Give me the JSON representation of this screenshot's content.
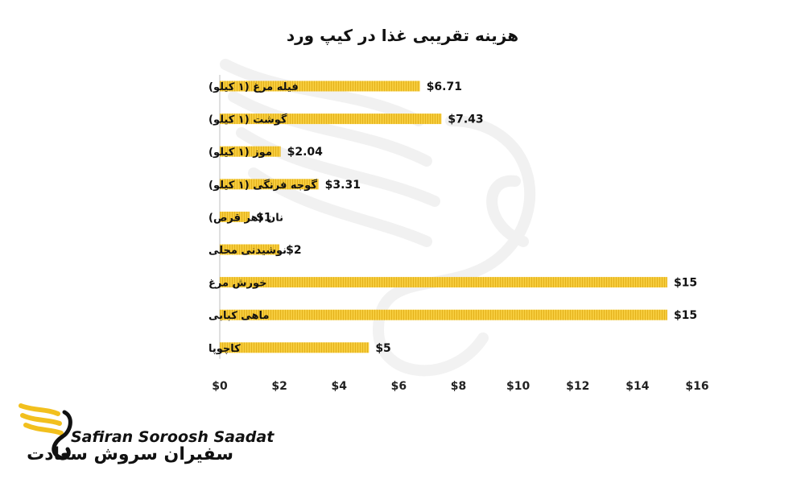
{
  "chart_data": {
    "type": "bar",
    "orientation": "horizontal",
    "title": "هزینه تقریبی غذا در کیپ ورد",
    "categories": [
      "فیله مرغ (۱ کیلو)",
      "گوشت (۱ کیلو)",
      "موز (۱ کیلو)",
      "گوجه فرنگی (۱ کیلو)",
      "نان (هر قرص)",
      "نوشیدنی محلی",
      "خورش مرغ",
      "ماهی کبابی",
      "کاچوپا"
    ],
    "values": [
      6.71,
      7.43,
      2.04,
      3.31,
      1,
      2,
      15,
      15,
      5
    ],
    "data_labels": [
      "$6.71",
      "$7.43",
      "$2.04",
      "$3.31",
      "$1",
      "$2",
      "$15",
      "$15",
      "$5"
    ],
    "xlim": [
      0,
      16
    ],
    "x_ticks": [
      0,
      2,
      4,
      6,
      8,
      10,
      12,
      14,
      16
    ],
    "x_tick_labels": [
      "$0",
      "$2",
      "$4",
      "$6",
      "$8",
      "$10",
      "$12",
      "$14",
      "$16"
    ],
    "grid": false,
    "legend": "none",
    "bar_color": "#f6cc3d",
    "bar_stripe_color": "#e4b21c"
  },
  "logo": {
    "name_en": "Safiran Soroosh Saadat",
    "name_fa": "سفیران سروش سعادت",
    "accent": "#f2c01e"
  }
}
